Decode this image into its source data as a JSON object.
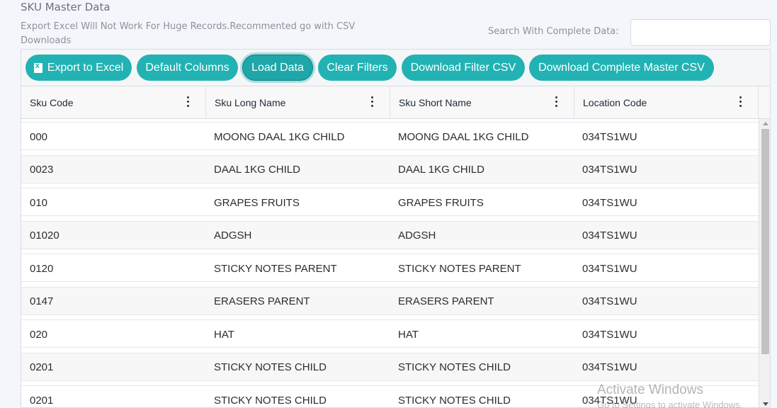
{
  "page": {
    "title": "SKU Master Data",
    "note": "Export Excel Will Not Work For Huge Records.Recommented go with CSV Downloads",
    "search_label": "Search With Complete Data:",
    "search_value": "",
    "search_placeholder": ""
  },
  "toolbar": {
    "export_excel": "Export to Excel",
    "default_columns": "Default Columns",
    "load_data": "Load Data",
    "clear_filters": "Clear Filters",
    "download_filter_csv": "Download Filter CSV",
    "download_master_csv": "Download Complete Master CSV"
  },
  "columns": [
    "Sku Code",
    "Sku Long Name",
    "Sku Short Name",
    "Location Code"
  ],
  "rows": [
    [
      "000",
      "MOONG DAAL 1KG CHILD",
      "MOONG DAAL 1KG CHILD",
      "034TS1WU"
    ],
    [
      "0023",
      "DAAL 1KG CHILD",
      "DAAL 1KG CHILD",
      "034TS1WU"
    ],
    [
      "010",
      "GRAPES FRUITS",
      "GRAPES FRUITS",
      "034TS1WU"
    ],
    [
      "01020",
      "ADGSH",
      "ADGSH",
      "034TS1WU"
    ],
    [
      "0120",
      "STICKY NOTES PARENT",
      "STICKY NOTES PARENT",
      "034TS1WU"
    ],
    [
      "0147",
      "ERASERS PARENT",
      "ERASERS PARENT",
      "034TS1WU"
    ],
    [
      "020",
      "HAT",
      "HAT",
      "034TS1WU"
    ],
    [
      "0201",
      "STICKY NOTES CHILD",
      "STICKY NOTES CHILD",
      "034TS1WU"
    ],
    [
      "0201",
      "STICKY NOTES CHILD",
      "STICKY NOTES CHILD",
      "034TS1WU"
    ]
  ],
  "watermark": {
    "line1": "Activate Windows",
    "line2": "Go to Settings to activate Windows."
  },
  "colors": {
    "button": "#22b2b3",
    "background": "#f4f6fb"
  }
}
